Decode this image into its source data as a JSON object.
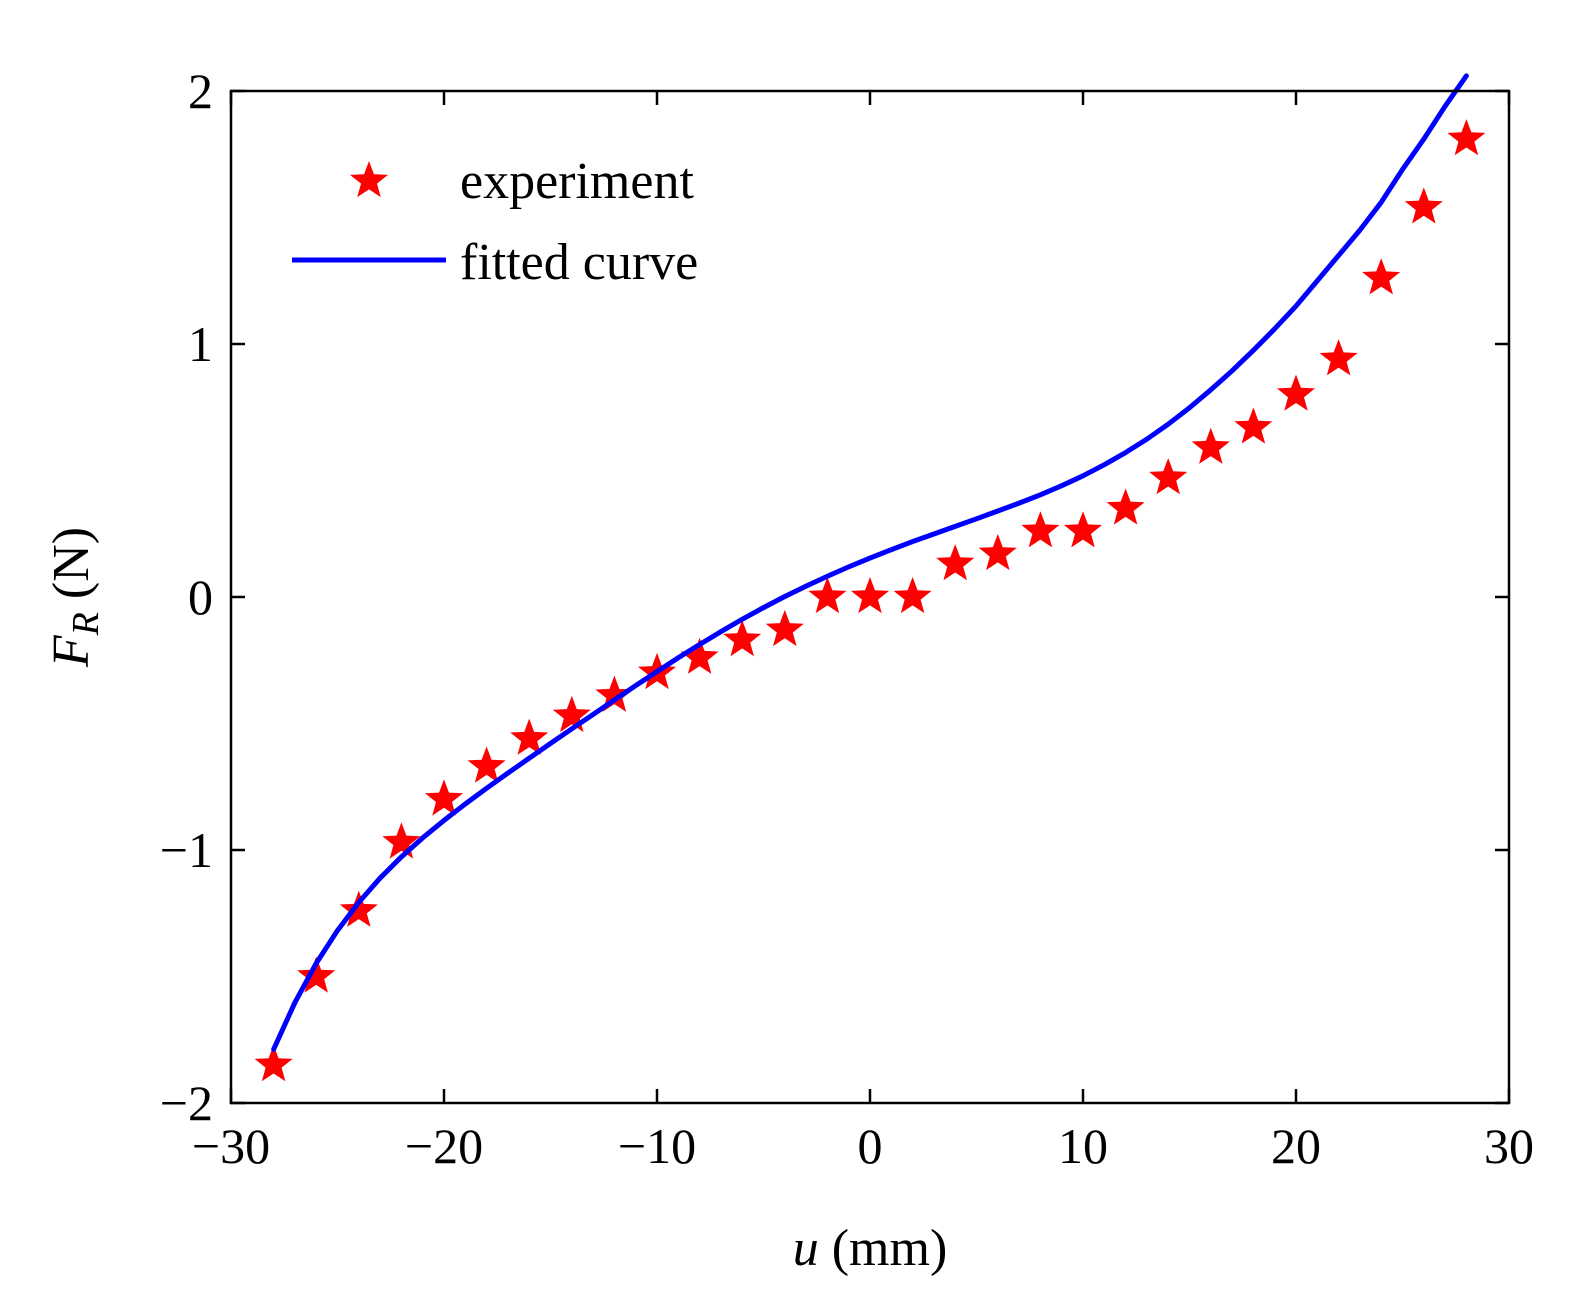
{
  "chart_data": {
    "type": "scatter",
    "title": "",
    "xlabel": {
      "symbol": "u",
      "unit": " (mm)"
    },
    "ylabel": {
      "symbol": "F",
      "subscript": "R",
      "unit": " (N)"
    },
    "xlim": [
      -30,
      30
    ],
    "ylim": [
      -2,
      2
    ],
    "xticks": [
      -30,
      -20,
      -10,
      0,
      10,
      20,
      30
    ],
    "yticks": [
      -2,
      -1,
      0,
      1,
      2
    ],
    "xtick_labels": [
      "−30",
      "−20",
      "−10",
      "0",
      "10",
      "20",
      "30"
    ],
    "ytick_labels": [
      "−2",
      "−1",
      "0",
      "1",
      "2"
    ],
    "grid": false,
    "legend_position": "top-left",
    "series": [
      {
        "name": "experiment",
        "kind": "markers",
        "marker": "star",
        "color": "#ff0000",
        "x": [
          -28,
          -26,
          -24,
          -22,
          -20,
          -18,
          -16,
          -14,
          -12,
          -10,
          -8,
          -6,
          -4,
          -2,
          0,
          2,
          4,
          6,
          8,
          10,
          12,
          14,
          16,
          18,
          20,
          22,
          24,
          26,
          28
        ],
        "y": [
          -1.85,
          -1.5,
          -1.24,
          -0.97,
          -0.8,
          -0.67,
          -0.56,
          -0.47,
          -0.39,
          -0.3,
          -0.24,
          -0.17,
          -0.13,
          0.0,
          0.0,
          0.0,
          0.13,
          0.17,
          0.26,
          0.26,
          0.35,
          0.47,
          0.59,
          0.67,
          0.8,
          0.94,
          1.26,
          1.54,
          1.81
        ]
      },
      {
        "name": "fitted curve",
        "kind": "line",
        "color": "#0000ff",
        "x": [
          -28,
          -27,
          -26,
          -25,
          -24,
          -23,
          -22,
          -21,
          -20,
          -19,
          -18,
          -17,
          -16,
          -15,
          -14,
          -13,
          -12,
          -11,
          -10,
          -9,
          -8,
          -7,
          -6,
          -5,
          -4,
          -3,
          -2,
          -1,
          0,
          1,
          2,
          3,
          4,
          5,
          6,
          7,
          8,
          9,
          10,
          11,
          12,
          13,
          14,
          15,
          16,
          17,
          18,
          19,
          20,
          21,
          22,
          23,
          24,
          25,
          26,
          27,
          28
        ],
        "y": [
          -1.788,
          -1.603,
          -1.448,
          -1.318,
          -1.207,
          -1.111,
          -1.027,
          -0.952,
          -0.883,
          -0.818,
          -0.756,
          -0.696,
          -0.637,
          -0.579,
          -0.521,
          -0.464,
          -0.407,
          -0.35,
          -0.295,
          -0.24,
          -0.188,
          -0.137,
          -0.088,
          -0.042,
          0.002,
          0.043,
          0.082,
          0.119,
          0.154,
          0.187,
          0.219,
          0.249,
          0.279,
          0.309,
          0.34,
          0.371,
          0.404,
          0.44,
          0.479,
          0.523,
          0.571,
          0.624,
          0.683,
          0.748,
          0.819,
          0.894,
          0.975,
          1.06,
          1.15,
          1.25,
          1.35,
          1.45,
          1.56,
          1.69,
          1.81,
          1.94,
          2.06
        ]
      }
    ]
  }
}
